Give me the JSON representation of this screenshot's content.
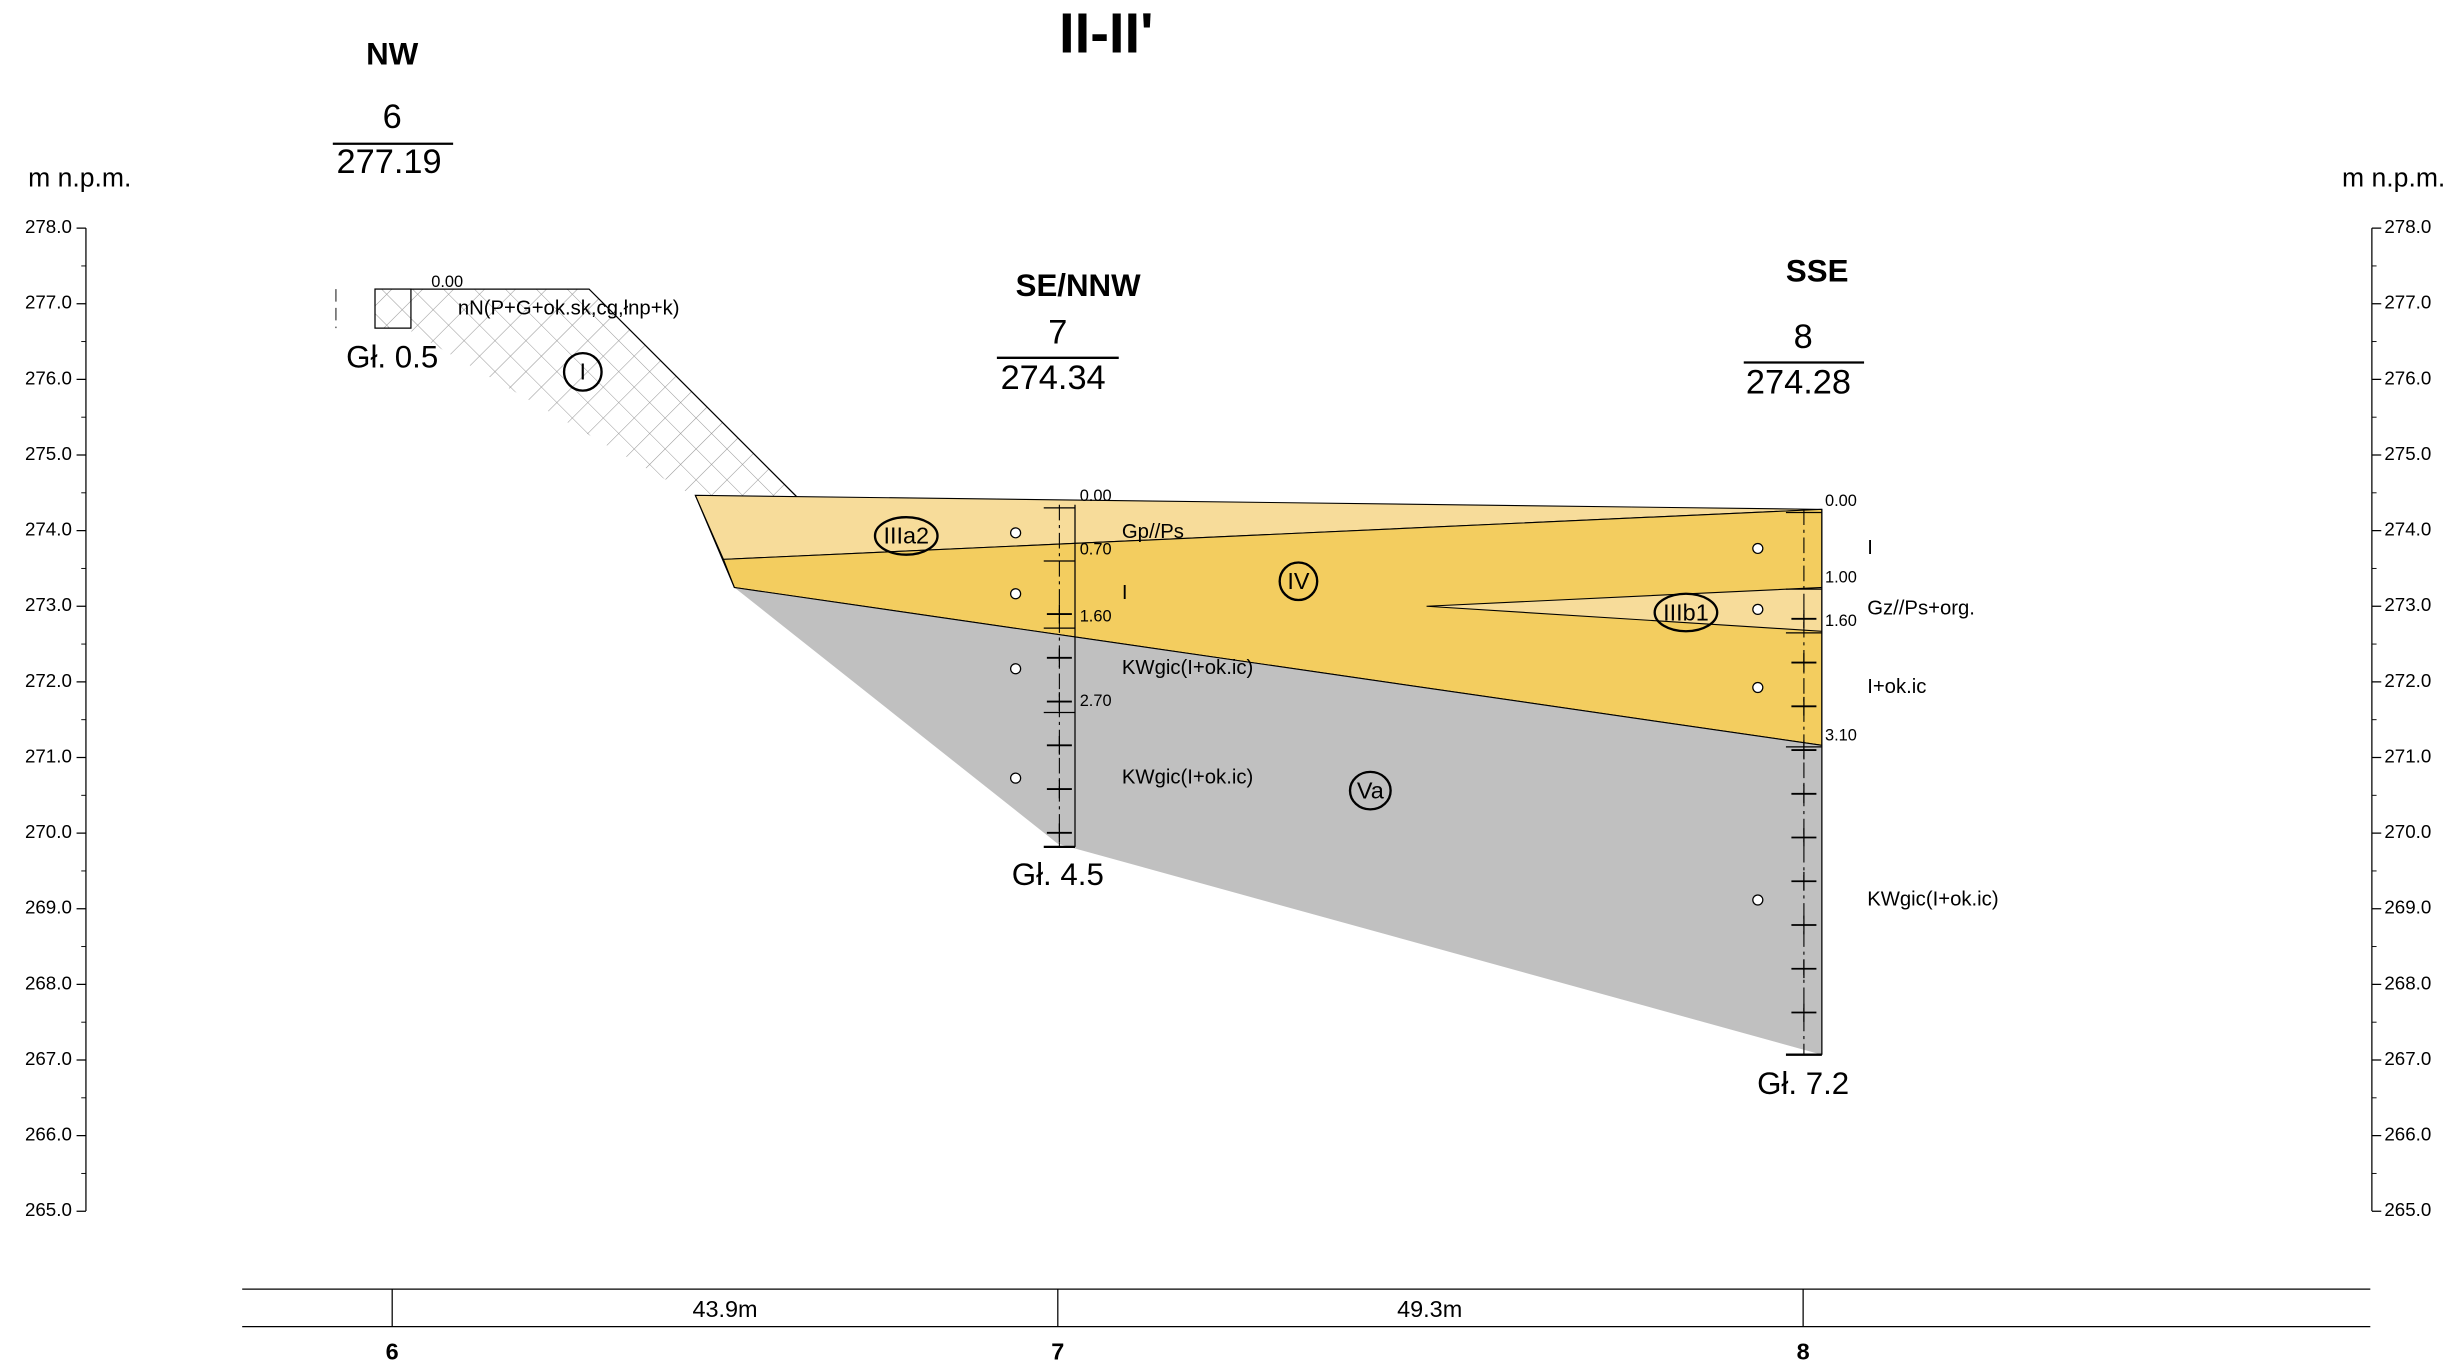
{
  "title": "II-II'",
  "axis_label": "m n.p.m.",
  "yticks": [
    "278.0",
    "277.0",
    "276.0",
    "275.0",
    "274.0",
    "273.0",
    "272.0",
    "271.0",
    "270.0",
    "269.0",
    "268.0",
    "267.0",
    "266.0",
    "265.0"
  ],
  "boreholes": [
    {
      "direction": "NW",
      "number": "6",
      "elevation": "277.19",
      "depth": "Gł. 0.5",
      "layer_depths": [
        "0.00"
      ],
      "soils": [
        "nN(P+G+ok.sk,cg,łnp+k)"
      ]
    },
    {
      "direction": "SE/NNW",
      "number": "7",
      "elevation": "274.34",
      "depth": "Gł. 4.5",
      "layer_depths": [
        "0.00",
        "0.70",
        "1.60",
        "2.70"
      ],
      "soils": [
        "Gp//Ps",
        "I",
        "KWgic(I+ok.ic)",
        "KWgic(I+ok.ic)"
      ]
    },
    {
      "direction": "SSE",
      "number": "8",
      "elevation": "274.28",
      "depth": "Gł. 7.2",
      "layer_depths": [
        "0.00",
        "1.00",
        "1.60",
        "3.10"
      ],
      "soils": [
        "I",
        "Gz//Ps+org.",
        "I+ok.ic",
        "KWgic(I+ok.ic)"
      ]
    }
  ],
  "units": [
    "I",
    "IIIa2",
    "IV",
    "IIIb1",
    "Va"
  ],
  "distances": [
    "43.9m",
    "49.3m"
  ]
}
